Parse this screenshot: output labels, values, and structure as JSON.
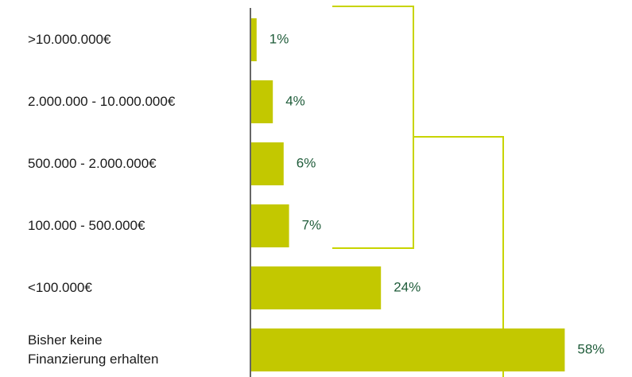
{
  "chart_data": {
    "type": "bar",
    "orientation": "horizontal",
    "categories": [
      ">10.000.000€",
      "2.000.000 - 10.000.000€",
      "500.000 - 2.000.000€",
      "100.000 - 500.000€",
      "<100.000€",
      "Bisher keine\nFinanzierung erhalten"
    ],
    "values": [
      1,
      4,
      6,
      7,
      24,
      58
    ],
    "value_labels": [
      "1%",
      "4%",
      "6%",
      "7%",
      "24%",
      "58%"
    ],
    "color": "#c3c800"
  }
}
